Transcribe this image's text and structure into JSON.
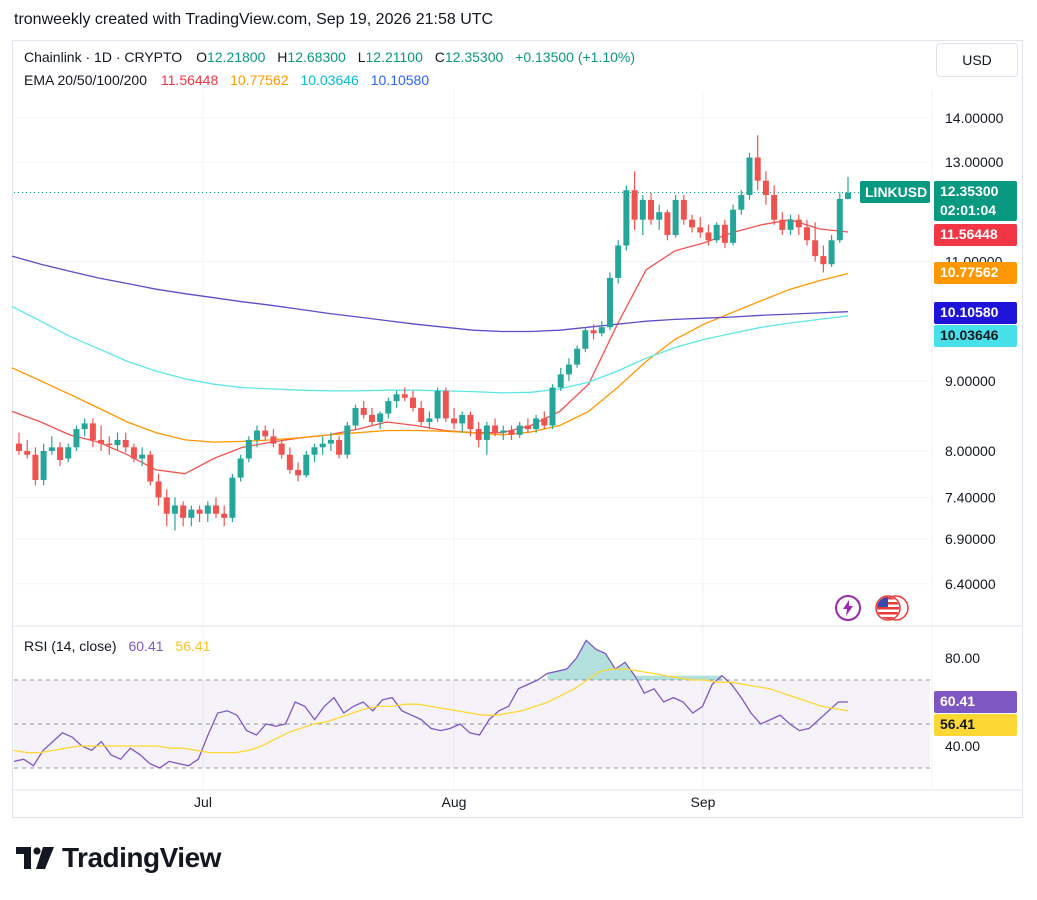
{
  "header": {
    "text": "tronweekly created with TradingView.com, Sep 19, 2026 21:58 UTC"
  },
  "legend": {
    "symbol": "Chainlink · 1D · CRYPTO",
    "open_label": "O",
    "open": "12.21800",
    "high_label": "H",
    "high": "12.68300",
    "low_label": "L",
    "low": "12.21100",
    "close_label": "C",
    "close": "12.35300",
    "change": "+0.13500 (+1.10%)",
    "ema_label": "EMA 20/50/100/200",
    "ema20": "11.56448",
    "ema50": "10.77562",
    "ema100": "10.03646",
    "ema200": "10.10580"
  },
  "currency": "USD",
  "price_axis": {
    "ticks": [
      "14.00000",
      "13.00000",
      "11.00000",
      "9.00000",
      "8.00000",
      "7.40000",
      "6.90000",
      "6.40000"
    ],
    "tick_values": [
      14,
      13,
      11,
      9,
      8,
      7.4,
      6.9,
      6.4
    ],
    "tags": {
      "symbol": "LINKUSD",
      "price": "12.35300",
      "countdown": "02:01:04",
      "ema20": "11.56448",
      "ema50": "10.77562",
      "ema200": "10.10580",
      "ema100": "10.03646"
    }
  },
  "rsi": {
    "label": "RSI (14, close)",
    "value": "60.41",
    "ma_value": "56.41",
    "ticks": [
      "80.00",
      "40.00"
    ],
    "tags": {
      "rsi": "60.41",
      "ma": "56.41"
    }
  },
  "time_axis": {
    "labels": [
      "Jul",
      "Aug",
      "Sep"
    ]
  },
  "colors": {
    "up": "#26a69a",
    "down": "#ef5350",
    "ema20": "#ef5350",
    "ema50": "#ff9800",
    "ema100": "#5ce6e6",
    "ema200": "#5c4ec9",
    "rsi": "#7e57c2",
    "rsi_ma": "#fdd835",
    "price_tag": "#089981",
    "ema20_tag": "#f23645",
    "ema50_tag": "#ff9800",
    "ema200_tag": "#1e13d9",
    "ema100_tag": "#48e0e8",
    "ema100_text": "#00bcd4",
    "ema200_text": "#2962ff",
    "change_text": "#089981"
  },
  "icons": [
    "lightning-icon",
    "us-flag-icon"
  ],
  "footer": {
    "brand": "TradingView"
  },
  "chart_data": {
    "type": "candlestick",
    "title": "Chainlink · 1D · CRYPTO",
    "xlabel": "",
    "ylabel": "",
    "ylim": [
      6.2,
      14.4
    ],
    "scale": "log",
    "x_labels": [
      "Jul",
      "Aug",
      "Sep"
    ],
    "candles": [
      [
        8.1,
        8.25,
        7.95,
        8.0
      ],
      [
        8.0,
        8.15,
        7.9,
        7.95
      ],
      [
        7.95,
        8.05,
        7.55,
        7.62
      ],
      [
        7.62,
        8.1,
        7.55,
        8.0
      ],
      [
        8.0,
        8.2,
        7.95,
        8.05
      ],
      [
        8.05,
        8.12,
        7.8,
        7.88
      ],
      [
        7.9,
        8.1,
        7.85,
        8.05
      ],
      [
        8.05,
        8.35,
        8.0,
        8.3
      ],
      [
        8.3,
        8.45,
        8.2,
        8.38
      ],
      [
        8.38,
        8.45,
        8.05,
        8.15
      ],
      [
        8.15,
        8.35,
        8.0,
        8.1
      ],
      [
        8.1,
        8.2,
        7.95,
        8.08
      ],
      [
        8.08,
        8.25,
        8.0,
        8.15
      ],
      [
        8.15,
        8.25,
        7.98,
        8.05
      ],
      [
        8.05,
        8.1,
        7.85,
        7.9
      ],
      [
        7.9,
        8.05,
        7.8,
        7.95
      ],
      [
        7.95,
        8.0,
        7.55,
        7.6
      ],
      [
        7.6,
        7.7,
        7.3,
        7.4
      ],
      [
        7.4,
        7.5,
        7.05,
        7.2
      ],
      [
        7.2,
        7.4,
        7.0,
        7.3
      ],
      [
        7.3,
        7.35,
        7.05,
        7.15
      ],
      [
        7.15,
        7.3,
        7.05,
        7.25
      ],
      [
        7.25,
        7.3,
        7.1,
        7.2
      ],
      [
        7.2,
        7.35,
        7.1,
        7.3
      ],
      [
        7.3,
        7.4,
        7.15,
        7.2
      ],
      [
        7.2,
        7.3,
        7.05,
        7.15
      ],
      [
        7.15,
        7.7,
        7.1,
        7.65
      ],
      [
        7.65,
        7.95,
        7.6,
        7.9
      ],
      [
        7.9,
        8.2,
        7.85,
        8.15
      ],
      [
        8.15,
        8.35,
        8.05,
        8.28
      ],
      [
        8.28,
        8.35,
        8.15,
        8.2
      ],
      [
        8.2,
        8.3,
        8.05,
        8.1
      ],
      [
        8.1,
        8.15,
        7.9,
        7.95
      ],
      [
        7.95,
        8.05,
        7.7,
        7.75
      ],
      [
        7.75,
        7.85,
        7.6,
        7.68
      ],
      [
        7.68,
        8.0,
        7.65,
        7.95
      ],
      [
        7.95,
        8.1,
        7.85,
        8.05
      ],
      [
        8.05,
        8.2,
        7.95,
        8.1
      ],
      [
        8.1,
        8.25,
        8.0,
        8.15
      ],
      [
        8.15,
        8.2,
        7.9,
        7.95
      ],
      [
        7.95,
        8.4,
        7.9,
        8.35
      ],
      [
        8.35,
        8.65,
        8.3,
        8.6
      ],
      [
        8.6,
        8.7,
        8.45,
        8.5
      ],
      [
        8.5,
        8.6,
        8.35,
        8.4
      ],
      [
        8.4,
        8.55,
        8.3,
        8.52
      ],
      [
        8.52,
        8.75,
        8.45,
        8.7
      ],
      [
        8.7,
        8.85,
        8.6,
        8.8
      ],
      [
        8.8,
        8.9,
        8.7,
        8.75
      ],
      [
        8.75,
        8.85,
        8.55,
        8.6
      ],
      [
        8.6,
        8.7,
        8.35,
        8.4
      ],
      [
        8.4,
        8.55,
        8.3,
        8.45
      ],
      [
        8.45,
        8.9,
        8.4,
        8.85
      ],
      [
        8.85,
        8.9,
        8.4,
        8.45
      ],
      [
        8.45,
        8.6,
        8.3,
        8.38
      ],
      [
        8.38,
        8.55,
        8.25,
        8.5
      ],
      [
        8.5,
        8.55,
        8.2,
        8.3
      ],
      [
        8.3,
        8.4,
        8.05,
        8.15
      ],
      [
        8.15,
        8.4,
        7.95,
        8.35
      ],
      [
        8.35,
        8.45,
        8.2,
        8.25
      ],
      [
        8.25,
        8.35,
        8.15,
        8.28
      ],
      [
        8.28,
        8.35,
        8.15,
        8.22
      ],
      [
        8.22,
        8.4,
        8.18,
        8.35
      ],
      [
        8.35,
        8.45,
        8.25,
        8.3
      ],
      [
        8.3,
        8.5,
        8.25,
        8.45
      ],
      [
        8.45,
        8.55,
        8.3,
        8.35
      ],
      [
        8.35,
        8.95,
        8.3,
        8.9
      ],
      [
        8.9,
        9.2,
        8.85,
        9.1
      ],
      [
        9.1,
        9.35,
        9.0,
        9.25
      ],
      [
        9.25,
        9.55,
        9.2,
        9.5
      ],
      [
        9.5,
        9.85,
        9.45,
        9.8
      ],
      [
        9.8,
        9.9,
        9.65,
        9.75
      ],
      [
        9.75,
        9.95,
        9.7,
        9.85
      ],
      [
        9.85,
        10.8,
        9.8,
        10.7
      ],
      [
        10.7,
        11.4,
        10.6,
        11.3
      ],
      [
        11.3,
        12.5,
        11.2,
        12.4
      ],
      [
        12.4,
        12.8,
        11.6,
        11.8
      ],
      [
        11.8,
        12.3,
        11.5,
        12.2
      ],
      [
        12.2,
        12.35,
        11.7,
        11.8
      ],
      [
        11.8,
        12.1,
        11.6,
        11.95
      ],
      [
        11.95,
        12.0,
        11.4,
        11.5
      ],
      [
        11.5,
        12.3,
        11.45,
        12.2
      ],
      [
        12.2,
        12.3,
        11.7,
        11.8
      ],
      [
        11.8,
        11.9,
        11.55,
        11.65
      ],
      [
        11.65,
        11.85,
        11.45,
        11.55
      ],
      [
        11.55,
        11.7,
        11.3,
        11.4
      ],
      [
        11.4,
        11.75,
        11.35,
        11.7
      ],
      [
        11.7,
        11.8,
        11.25,
        11.35
      ],
      [
        11.35,
        12.1,
        11.3,
        12.0
      ],
      [
        12.0,
        12.4,
        11.9,
        12.3
      ],
      [
        12.3,
        13.2,
        12.2,
        13.1
      ],
      [
        13.1,
        13.6,
        12.4,
        12.6
      ],
      [
        12.6,
        12.8,
        12.1,
        12.3
      ],
      [
        12.3,
        12.5,
        11.7,
        11.8
      ],
      [
        11.8,
        11.95,
        11.5,
        11.6
      ],
      [
        11.6,
        11.9,
        11.5,
        11.8
      ],
      [
        11.8,
        11.9,
        11.5,
        11.65
      ],
      [
        11.65,
        11.8,
        11.3,
        11.4
      ],
      [
        11.4,
        11.75,
        11.0,
        11.1
      ],
      [
        11.1,
        11.3,
        10.8,
        10.95
      ],
      [
        10.95,
        11.5,
        10.9,
        11.4
      ],
      [
        11.4,
        12.35,
        11.35,
        12.22
      ],
      [
        12.22,
        12.68,
        12.21,
        12.35
      ]
    ],
    "series": [
      {
        "name": "EMA 20",
        "color": "#ef5350",
        "values": [
          8.55,
          8.4,
          8.22,
          8.12,
          7.95,
          7.75,
          7.7,
          7.9,
          8.05,
          8.12,
          8.18,
          8.22,
          8.3,
          8.4,
          8.35,
          8.28,
          8.25,
          8.25,
          8.35,
          8.55,
          8.95,
          9.9,
          10.85,
          11.2,
          11.35,
          11.55,
          11.7,
          11.8,
          11.62,
          11.56
        ]
      },
      {
        "name": "EMA 50",
        "color": "#ff9800",
        "values": [
          9.2,
          9.0,
          8.8,
          8.6,
          8.4,
          8.25,
          8.15,
          8.12,
          8.13,
          8.15,
          8.18,
          8.22,
          8.25,
          8.28,
          8.28,
          8.27,
          8.25,
          8.22,
          8.26,
          8.35,
          8.55,
          8.9,
          9.3,
          9.65,
          9.9,
          10.1,
          10.3,
          10.5,
          10.65,
          10.78
        ]
      },
      {
        "name": "EMA 100",
        "color": "#5ce6e6",
        "values": [
          10.2,
          9.95,
          9.7,
          9.5,
          9.3,
          9.15,
          9.03,
          8.95,
          8.9,
          8.88,
          8.86,
          8.85,
          8.85,
          8.86,
          8.86,
          8.85,
          8.84,
          8.82,
          8.83,
          8.88,
          8.98,
          9.15,
          9.35,
          9.52,
          9.65,
          9.75,
          9.85,
          9.92,
          9.98,
          10.04
        ]
      },
      {
        "name": "EMA 200",
        "color": "#5c4ec9",
        "values": [
          11.1,
          10.95,
          10.82,
          10.7,
          10.6,
          10.5,
          10.42,
          10.35,
          10.28,
          10.22,
          10.15,
          10.08,
          10.02,
          9.96,
          9.9,
          9.85,
          9.8,
          9.78,
          9.78,
          9.8,
          9.85,
          9.9,
          9.95,
          9.98,
          10.0,
          10.02,
          10.05,
          10.07,
          10.09,
          10.11
        ]
      }
    ],
    "rsi": {
      "ylim": [
        20,
        100
      ],
      "upper_band": 70,
      "lower_band": 30,
      "mid_line": 50,
      "values": [
        33,
        34,
        31,
        38,
        42,
        46,
        44,
        40,
        38,
        42,
        36,
        34,
        39,
        36,
        32,
        30,
        33,
        32,
        31,
        34,
        45,
        55,
        56,
        54,
        47,
        45,
        50,
        49,
        50,
        60,
        58,
        52,
        58,
        62,
        55,
        58,
        60,
        56,
        61,
        62,
        56,
        54,
        52,
        48,
        47,
        48,
        50,
        46,
        45,
        52,
        56,
        58,
        66,
        68,
        70,
        73,
        74,
        75,
        80,
        88,
        84,
        82,
        75,
        78,
        72,
        64,
        66,
        60,
        62,
        60,
        55,
        58,
        68,
        72,
        68,
        62,
        55,
        50,
        52,
        54,
        50,
        47,
        48,
        52,
        56,
        60,
        60
      ],
      "ma_values": [
        38,
        37,
        37,
        38,
        39,
        40,
        40,
        40,
        40,
        40,
        40,
        40,
        39,
        39,
        38,
        37,
        37,
        37,
        38,
        40,
        43,
        46,
        48,
        50,
        51,
        53,
        55,
        57,
        58,
        58,
        59,
        59,
        58,
        57,
        56,
        55,
        54,
        54,
        55,
        56,
        58,
        60,
        63,
        66,
        70,
        74,
        75,
        75,
        74,
        73,
        72,
        71,
        70,
        70,
        69,
        69,
        68,
        67,
        66,
        64,
        62,
        60,
        58,
        57,
        56
      ]
    }
  }
}
